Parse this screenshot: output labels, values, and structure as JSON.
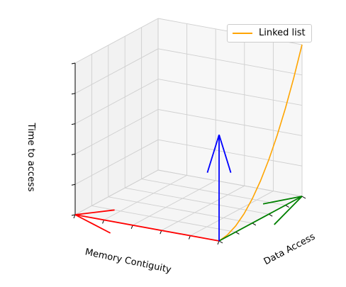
{
  "chart_data": {
    "type": "line",
    "subtype": "3d-axes-with-quiver-arrows",
    "title": "",
    "xlabel": "Memory Contiguity",
    "ylabel": "Data Access",
    "zlabel": "Time to access",
    "tick_labels_visible": false,
    "grid": true,
    "legend_position": "top-right",
    "series": [
      {
        "name": "Linked list",
        "color": "#ffa500",
        "kind": "curve",
        "x": [
          0,
          0,
          0,
          0,
          0,
          0,
          0,
          0,
          0,
          0,
          0
        ],
        "y": [
          0,
          0.1,
          0.2,
          0.3,
          0.4,
          0.5,
          0.6,
          0.7,
          0.8,
          0.9,
          1.0
        ],
        "z": [
          0,
          0.01,
          0.04,
          0.09,
          0.16,
          0.25,
          0.36,
          0.49,
          0.64,
          0.81,
          1.0
        ]
      }
    ],
    "arrows": [
      {
        "color": "#ff0000",
        "from": [
          0,
          0,
          0
        ],
        "to": [
          1,
          0,
          0
        ]
      },
      {
        "color": "#008000",
        "from": [
          0,
          0,
          0
        ],
        "to": [
          0,
          1,
          0
        ]
      },
      {
        "color": "#0000ff",
        "from": [
          0,
          0,
          0
        ],
        "to": [
          0,
          0,
          0.7
        ]
      }
    ]
  }
}
